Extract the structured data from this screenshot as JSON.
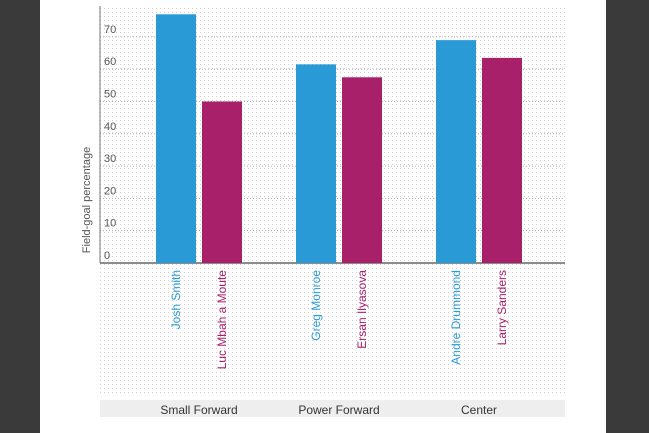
{
  "chart_data": {
    "type": "bar",
    "ylabel": "Field-goal percentage",
    "ylim": [
      0,
      78
    ],
    "yticks": [
      0,
      10,
      20,
      30,
      40,
      50,
      60,
      70
    ],
    "grid": "dotted",
    "groups": [
      {
        "name": "Small Forward",
        "bars": [
          {
            "player": "Josh Smith",
            "value": 77,
            "color": "#2a9ad6"
          },
          {
            "player": "Luc Mbah a Moute",
            "value": 50,
            "color": "#a8206a"
          }
        ]
      },
      {
        "name": "Power Forward",
        "bars": [
          {
            "player": "Greg Monroe",
            "value": 61.5,
            "color": "#2a9ad6"
          },
          {
            "player": "Ersan Ilyasova",
            "value": 57.5,
            "color": "#a8206a"
          }
        ]
      },
      {
        "name": "Center",
        "bars": [
          {
            "player": "Andre Drummond",
            "value": 69,
            "color": "#2a9ad6"
          },
          {
            "player": "Larry Sanders",
            "value": 63.5,
            "color": "#a8206a"
          }
        ]
      }
    ]
  }
}
